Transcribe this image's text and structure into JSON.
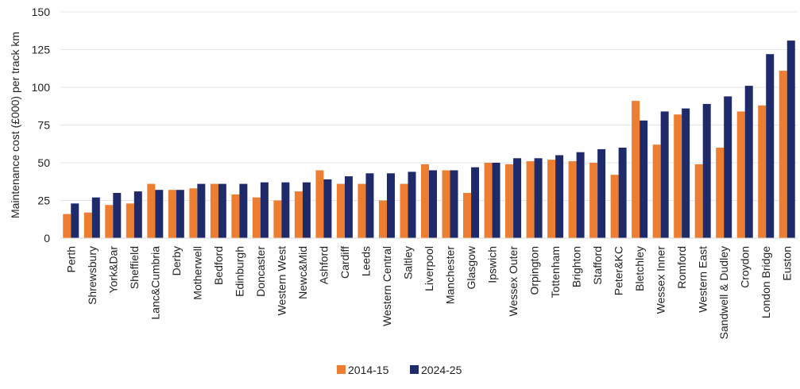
{
  "chart_data": {
    "type": "bar",
    "title": "",
    "xlabel": "",
    "ylabel": "Maintenance cost (£000) per track km",
    "ylim": [
      0,
      150
    ],
    "yticks": [
      0,
      25,
      50,
      75,
      100,
      125,
      150
    ],
    "grid": "horizontal",
    "legend_position": "bottom-center",
    "categories": [
      "Perth",
      "Shrewsbury",
      "York&Dar",
      "Sheffield",
      "Lanc&Cumbria",
      "Derby",
      "Motherwell",
      "Bedford",
      "Edinburgh",
      "Doncaster",
      "Western West",
      "Newc&Mid",
      "Ashford",
      "Cardiff",
      "Leeds",
      "Western Central",
      "Saltley",
      "Liverpool",
      "Manchester",
      "Glasgow",
      "Ipswich",
      "Wessex Outer",
      "Orpington",
      "Tottenham",
      "Brighton",
      "Stafford",
      "Peter&KC",
      "Bletchley",
      "Wessex Inner",
      "Romford",
      "Western East",
      "Sandwell & Dudley",
      "Croydon",
      "London Bridge",
      "Euston"
    ],
    "series": [
      {
        "name": "2014-15",
        "color": "#ED7D31",
        "values": [
          16,
          17,
          22,
          23,
          36,
          32,
          33,
          36,
          29,
          27,
          25,
          31,
          45,
          36,
          36,
          25,
          36,
          49,
          45,
          30,
          50,
          49,
          51,
          52,
          51,
          50,
          42,
          91,
          62,
          82,
          49,
          60,
          84,
          88,
          111
        ]
      },
      {
        "name": "2024-25",
        "color": "#1F2A6B",
        "values": [
          23,
          27,
          30,
          31,
          32,
          32,
          36,
          36,
          36,
          37,
          37,
          37,
          39,
          41,
          43,
          43,
          44,
          45,
          45,
          47,
          50,
          53,
          53,
          55,
          57,
          59,
          60,
          78,
          84,
          86,
          89,
          94,
          101,
          122,
          131
        ]
      }
    ]
  }
}
